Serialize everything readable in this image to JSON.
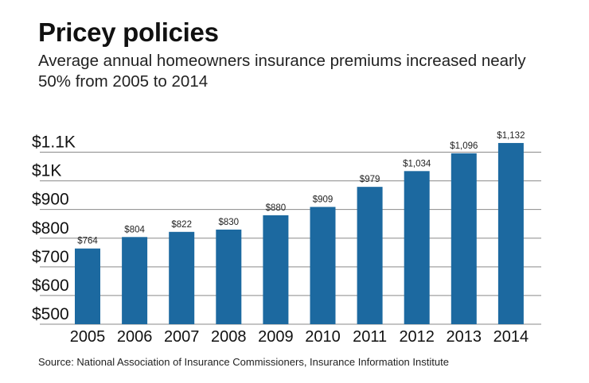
{
  "title": "Pricey policies",
  "subtitle": "Average annual homeowners insurance premiums increased nearly 50% from 2005 to 2014",
  "source": "Source: National Association of Insurance Commissioners, Insurance Information Institute",
  "chart_data": {
    "type": "bar",
    "categories": [
      "2005",
      "2006",
      "2007",
      "2008",
      "2009",
      "2010",
      "2011",
      "2012",
      "2013",
      "2014"
    ],
    "values": [
      764,
      804,
      822,
      830,
      880,
      909,
      979,
      1034,
      1096,
      1132
    ],
    "data_labels": [
      "$764",
      "$804",
      "$822",
      "$830",
      "$880",
      "$909",
      "$979",
      "$1,034",
      "$1,096",
      "$1,132"
    ],
    "ylim": [
      500,
      1100
    ],
    "yticks": [
      500,
      600,
      700,
      800,
      900,
      1000,
      1100
    ],
    "ytick_labels": [
      "$500",
      "$600",
      "$700",
      "$800",
      "$900",
      "$1K",
      "$1.1K"
    ],
    "grid": true,
    "bar_color": "#1c69a0",
    "grid_color": "#8a8a8a"
  }
}
